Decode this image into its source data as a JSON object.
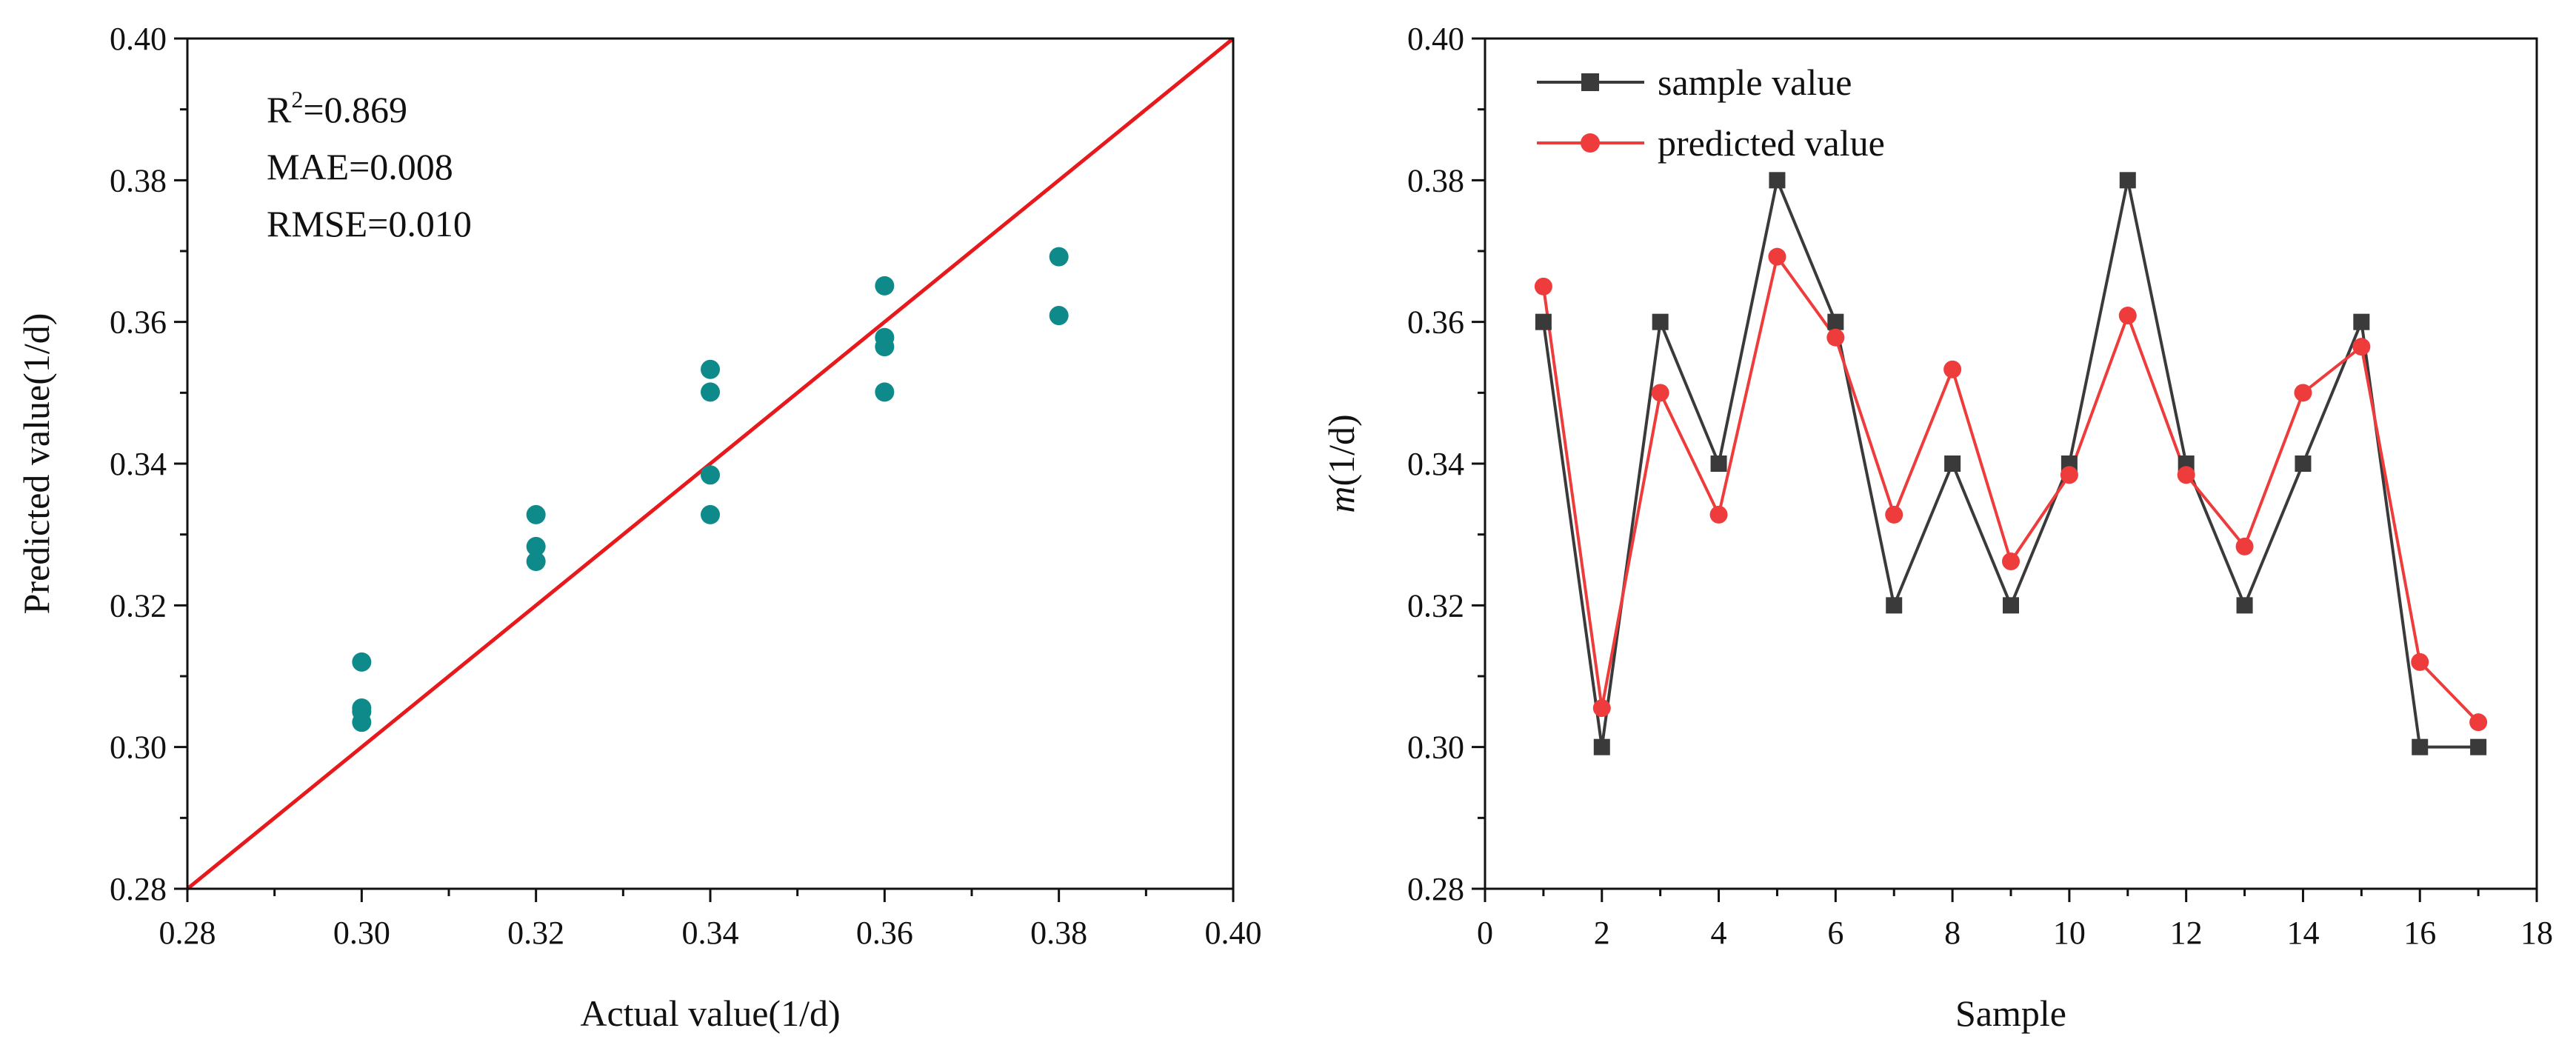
{
  "chart_data": [
    {
      "type": "scatter",
      "xlabel": "Actual value(1/d)",
      "ylabel": "Predicted value(1/d)",
      "xlim": [
        0.28,
        0.4
      ],
      "ylim": [
        0.28,
        0.4
      ],
      "xticks": [
        "0.28",
        "0.30",
        "0.32",
        "0.34",
        "0.36",
        "0.38",
        "0.40"
      ],
      "yticks": [
        "0.28",
        "0.30",
        "0.32",
        "0.34",
        "0.36",
        "0.38",
        "0.40"
      ],
      "points": [
        [
          0.3,
          0.312
        ],
        [
          0.3,
          0.3055
        ],
        [
          0.3,
          0.3035
        ],
        [
          0.32,
          0.3328
        ],
        [
          0.32,
          0.3283
        ],
        [
          0.32,
          0.3262
        ],
        [
          0.34,
          0.3533
        ],
        [
          0.34,
          0.3501
        ],
        [
          0.34,
          0.3384
        ],
        [
          0.34,
          0.3328
        ],
        [
          0.36,
          0.3651
        ],
        [
          0.36,
          0.3578
        ],
        [
          0.36,
          0.3565
        ],
        [
          0.36,
          0.3501
        ],
        [
          0.38,
          0.3692
        ],
        [
          0.38,
          0.3609
        ],
        [
          0.3,
          0.305
        ]
      ],
      "fit_line": [
        [
          0.28,
          0.28
        ],
        [
          0.4,
          0.4
        ]
      ],
      "annotations": {
        "r2_base": "R",
        "r2_sup": "2",
        "r2_rest": "=0.869",
        "mae": "MAE=0.008",
        "rmse": "RMSE=0.010"
      },
      "colors": {
        "points": "#0f8a8a",
        "fit_line": "#e8191c"
      }
    },
    {
      "type": "line",
      "xlabel": "Sample",
      "ylabel_italic": "m",
      "ylabel_rest": "(1/d)",
      "xlim": [
        0,
        18
      ],
      "ylim": [
        0.28,
        0.4
      ],
      "xticks": [
        "0",
        "2",
        "4",
        "6",
        "8",
        "10",
        "12",
        "14",
        "16",
        "18"
      ],
      "yticks": [
        "0.28",
        "0.30",
        "0.32",
        "0.34",
        "0.36",
        "0.38",
        "0.40"
      ],
      "x": [
        1,
        2,
        3,
        4,
        5,
        6,
        7,
        8,
        9,
        10,
        11,
        12,
        13,
        14,
        15,
        16,
        17
      ],
      "series": [
        {
          "name": "sample value",
          "color": "#3a3a3a",
          "marker": "square",
          "values": [
            0.36,
            0.3,
            0.36,
            0.34,
            0.38,
            0.36,
            0.32,
            0.34,
            0.32,
            0.34,
            0.38,
            0.34,
            0.32,
            0.34,
            0.36,
            0.3,
            0.3
          ]
        },
        {
          "name": "predicted value",
          "color": "#ee3b3b",
          "marker": "circle",
          "values": [
            0.365,
            0.3055,
            0.35,
            0.3328,
            0.3692,
            0.3578,
            0.3328,
            0.3533,
            0.3262,
            0.3384,
            0.3609,
            0.3384,
            0.3283,
            0.35,
            0.3565,
            0.312,
            0.3035
          ]
        }
      ],
      "legend_position": "top-left"
    }
  ]
}
